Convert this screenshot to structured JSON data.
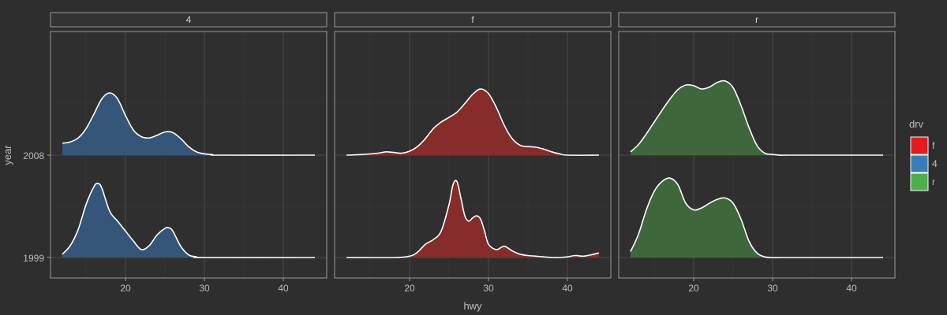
{
  "chart_data": {
    "type": "ridgeline-density",
    "xlabel": "hwy",
    "ylabel": "year",
    "xlim": [
      10.5,
      45.5
    ],
    "x_ticks": [
      20,
      30,
      40
    ],
    "y_categories": [
      "1999",
      "2008"
    ],
    "panels": [
      "4",
      "f",
      "r"
    ],
    "legend": {
      "title": "drv",
      "position": "right",
      "entries": [
        {
          "label": "f",
          "color": "#e41a1c"
        },
        {
          "label": "4",
          "color": "#377eb8"
        },
        {
          "label": "r",
          "color": "#4daf4a"
        }
      ]
    },
    "colors": {
      "4": "#36577d",
      "f": "#8b2c2a",
      "r": "#3f6b3c"
    },
    "series": [
      {
        "panel": "4",
        "year": "2008",
        "x": [
          12,
          13,
          14,
          15,
          16,
          17,
          18,
          19,
          20,
          21,
          22,
          23,
          24,
          25,
          26,
          27,
          28,
          29,
          30,
          31,
          32,
          44
        ],
        "y": [
          0.18,
          0.2,
          0.26,
          0.4,
          0.62,
          0.85,
          0.94,
          0.85,
          0.6,
          0.38,
          0.28,
          0.26,
          0.3,
          0.35,
          0.34,
          0.25,
          0.13,
          0.05,
          0.02,
          0.01,
          0,
          0
        ]
      },
      {
        "panel": "4",
        "year": "1999",
        "x": [
          12,
          13,
          14,
          15,
          16,
          16.5,
          17,
          18,
          19,
          20,
          21,
          22,
          23,
          24,
          25,
          25.5,
          26,
          27,
          28,
          29,
          30,
          44
        ],
        "y": [
          0.05,
          0.18,
          0.42,
          0.8,
          1.07,
          1.12,
          1.05,
          0.7,
          0.55,
          0.4,
          0.25,
          0.12,
          0.18,
          0.34,
          0.44,
          0.45,
          0.4,
          0.17,
          0.04,
          0.01,
          0,
          0
        ]
      },
      {
        "panel": "f",
        "year": "2008",
        "x": [
          12,
          14,
          16,
          17,
          18,
          19,
          20,
          21,
          22,
          23,
          24,
          25,
          26,
          27,
          28,
          29,
          30,
          31,
          32,
          33,
          34,
          35,
          36,
          37,
          38,
          39,
          40,
          44
        ],
        "y": [
          0,
          0.01,
          0.03,
          0.05,
          0.04,
          0.03,
          0.06,
          0.13,
          0.25,
          0.4,
          0.5,
          0.57,
          0.65,
          0.78,
          0.92,
          1.0,
          0.93,
          0.72,
          0.45,
          0.25,
          0.15,
          0.13,
          0.12,
          0.09,
          0.05,
          0.02,
          0,
          0
        ]
      },
      {
        "panel": "f",
        "year": "1999",
        "x": [
          12,
          18,
          20,
          21,
          22,
          23,
          24,
          25,
          25.5,
          26,
          26.5,
          27,
          27.5,
          28,
          28.5,
          29,
          29.5,
          30,
          31,
          32,
          33,
          34,
          35,
          36,
          37,
          38,
          39,
          40,
          41,
          42,
          43,
          44
        ],
        "y": [
          0,
          0,
          0.02,
          0.08,
          0.2,
          0.27,
          0.4,
          0.8,
          1.1,
          1.15,
          0.9,
          0.63,
          0.55,
          0.6,
          0.63,
          0.58,
          0.4,
          0.2,
          0.12,
          0.17,
          0.1,
          0.05,
          0.03,
          0.02,
          0.01,
          0,
          0,
          0.01,
          0.03,
          0.02,
          0.04,
          0.07
        ]
      },
      {
        "panel": "r",
        "year": "2008",
        "x": [
          12,
          13,
          14,
          15,
          16,
          17,
          18,
          19,
          20,
          21,
          22,
          23,
          24,
          25,
          26,
          27,
          28,
          29,
          30,
          31,
          32,
          44
        ],
        "y": [
          0.05,
          0.16,
          0.32,
          0.5,
          0.68,
          0.85,
          0.99,
          1.06,
          1.05,
          1.0,
          1.03,
          1.1,
          1.12,
          1.02,
          0.75,
          0.42,
          0.15,
          0.03,
          0.01,
          0,
          0,
          0
        ]
      },
      {
        "panel": "r",
        "year": "1999",
        "x": [
          12,
          13,
          14,
          15,
          16,
          17,
          18,
          19,
          20,
          21,
          22,
          23,
          24,
          25,
          26,
          27,
          28,
          29,
          30,
          31,
          32,
          44
        ],
        "y": [
          0.09,
          0.35,
          0.72,
          1.0,
          1.15,
          1.2,
          1.1,
          0.82,
          0.72,
          0.75,
          0.82,
          0.88,
          0.9,
          0.82,
          0.58,
          0.25,
          0.07,
          0.01,
          0,
          0,
          0,
          0
        ]
      }
    ]
  }
}
